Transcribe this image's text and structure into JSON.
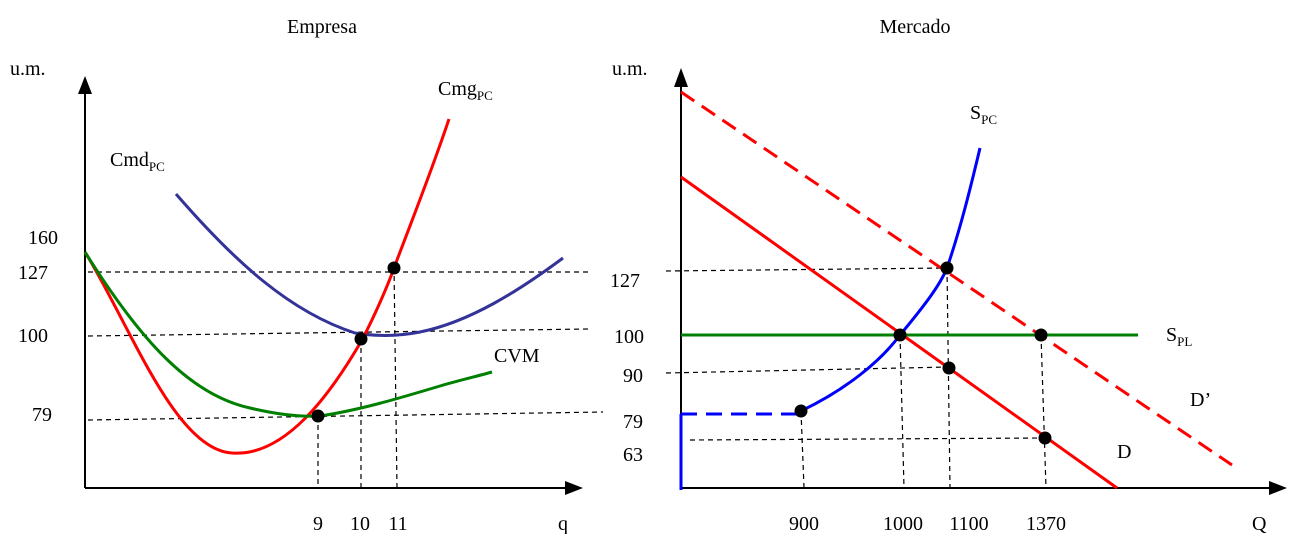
{
  "colors": {
    "red": "#ff0000",
    "blue_empresa": "#333399",
    "blue_mercado": "#0000ff",
    "green": "#008000",
    "axis": "#000000"
  },
  "empresa": {
    "title": "Empresa",
    "y_axis_label": "u.m.",
    "x_axis_label": "q",
    "y_ticks": [
      "160",
      "127",
      "100",
      "79"
    ],
    "x_ticks": [
      "9",
      "10",
      "11"
    ],
    "curves": {
      "cmg": {
        "main": "Cmg",
        "sub": "PC"
      },
      "cmd": {
        "main": "Cmd",
        "sub": "PC"
      },
      "cvm": {
        "main": "CVM"
      }
    }
  },
  "mercado": {
    "title": "Mercado",
    "y_axis_label": "u.m.",
    "x_axis_label": "Q",
    "y_ticks": [
      "127",
      "100",
      "90",
      "79",
      "63"
    ],
    "x_ticks": [
      "900",
      "1000",
      "1100",
      "1370"
    ],
    "curves": {
      "spc": {
        "main": "S",
        "sub": "PC"
      },
      "spl": {
        "main": "S",
        "sub": "PL"
      },
      "d_prime": {
        "main": "D’"
      },
      "d": {
        "main": "D"
      }
    }
  }
}
